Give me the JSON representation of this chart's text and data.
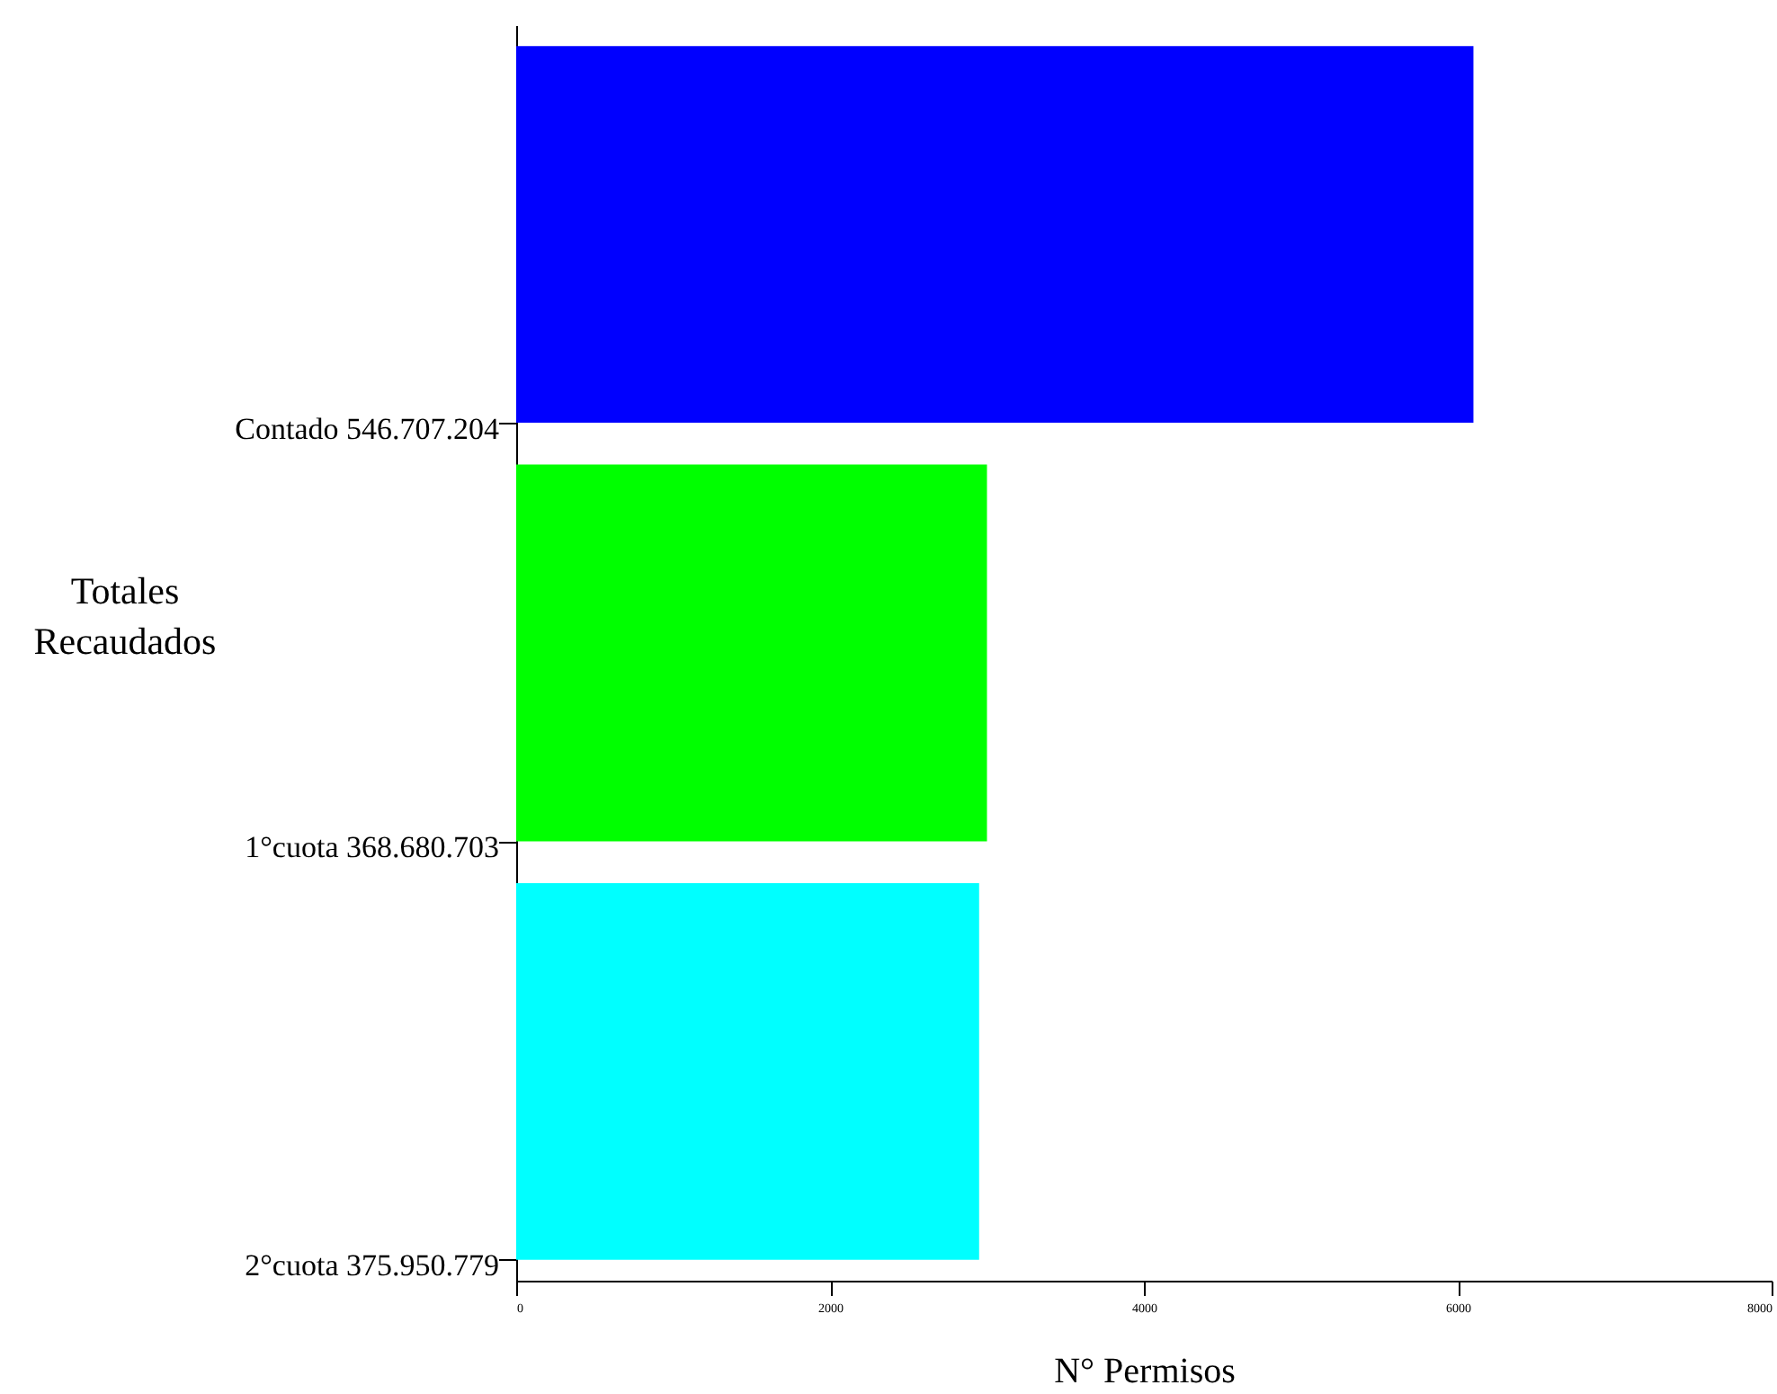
{
  "chart_data": {
    "type": "bar",
    "orientation": "horizontal",
    "categories": [
      "Contado 546.707.204",
      "1°cuota 368.680.703",
      "2°cuota 375.950.779"
    ],
    "values": [
      6100,
      3000,
      2950
    ],
    "colors": [
      "#0000ff",
      "#00ff00",
      "#00ffff"
    ],
    "xlabel": "N° Permisos",
    "ylabel": "Totales Recaudados",
    "xlim": [
      0,
      8000
    ],
    "xticks": [
      0,
      2000,
      4000,
      6000,
      8000
    ],
    "grid": false
  }
}
